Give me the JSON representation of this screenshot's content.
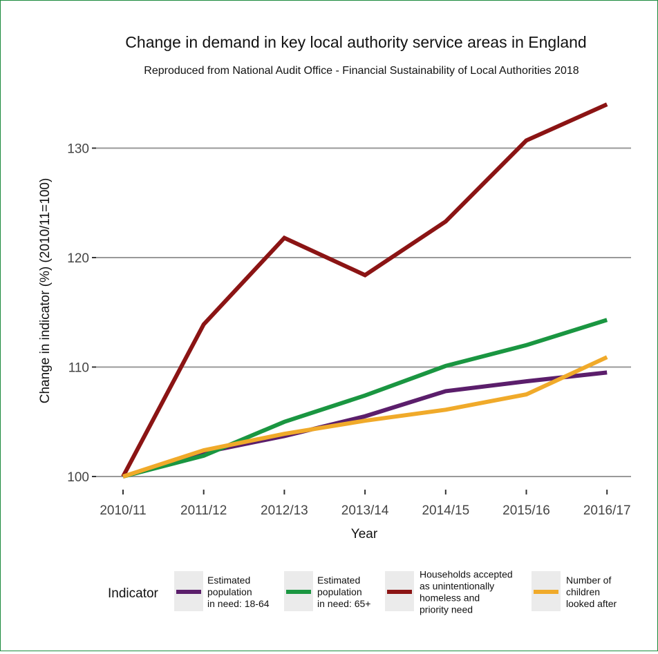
{
  "chart_data": {
    "type": "line",
    "title": "Change in demand in key local authority service areas in England",
    "subtitle": "Reproduced from National Audit Office - Financial Sustainability of Local Authorities 2018",
    "xlabel": "Year",
    "ylabel": "Change in indicator (%) (2010/11=100)",
    "categories": [
      "2010/11",
      "2011/12",
      "2012/13",
      "2013/14",
      "2014/15",
      "2015/16",
      "2016/17"
    ],
    "y_ticks": [
      "100",
      "110",
      "120",
      "130"
    ],
    "y_tick_values": [
      100,
      110,
      120,
      130
    ],
    "ylim": [
      98.8,
      136.8
    ],
    "grid": "horizontal major lines only",
    "legend_position": "bottom",
    "legend_title": "Indicator",
    "series": [
      {
        "name": "Estimated population in need: 18-64",
        "legend_lines": [
          "Estimated",
          "population",
          "in need: 18-64"
        ],
        "color": "#5b1e6b",
        "values": [
          100,
          102.2,
          103.7,
          105.5,
          107.8,
          108.7,
          109.5
        ]
      },
      {
        "name": "Estimated population in need: 65+",
        "legend_lines": [
          "Estimated",
          "population",
          "in need: 65+"
        ],
        "color": "#1a9641",
        "values": [
          100,
          101.9,
          105.0,
          107.4,
          110.1,
          112.0,
          114.3
        ]
      },
      {
        "name": "Households accepted as unintentionally homeless and priority need",
        "legend_lines": [
          "Households accepted",
          "as unintentionally",
          "homeless and",
          "priority need"
        ],
        "color": "#8b1414",
        "values": [
          100,
          113.9,
          121.8,
          118.4,
          123.3,
          130.7,
          134.0
        ]
      },
      {
        "name": "Number of children looked after",
        "legend_lines": [
          "Number of",
          "children",
          "looked after"
        ],
        "color": "#f0aa2a",
        "values": [
          100,
          102.4,
          103.9,
          105.1,
          106.1,
          107.5,
          110.9
        ]
      }
    ]
  }
}
